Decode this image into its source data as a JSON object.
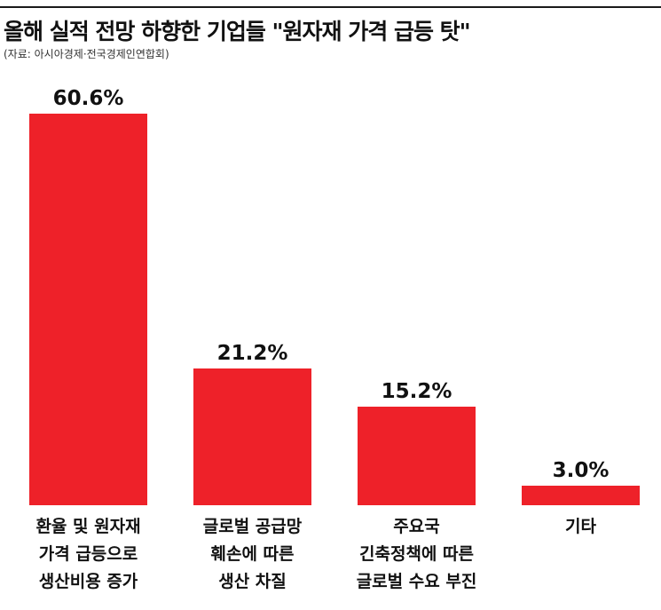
{
  "title": "올해 실적 전망 하향한 기업들 \"원자재 가격 급등 탓\"",
  "source": "(자료: 아시아경제·전국경제인연합회)",
  "colors": {
    "bar": "#ee2129",
    "rule": "#1a1a1a"
  },
  "chart_data": {
    "type": "bar",
    "title": "올해 실적 전망 하향한 기업들 \"원자재 가격 급등 탓\"",
    "xlabel": "",
    "ylabel": "",
    "ylim": [
      0,
      60.6
    ],
    "grid": false,
    "unit": "%",
    "categories": [
      [
        "환율 및 원자재",
        "가격 급등으로",
        "생산비용 증가"
      ],
      [
        "글로벌 공급망",
        "훼손에 따른",
        "생산 차질"
      ],
      [
        "주요국",
        "긴축정책에 따른",
        "글로벌 수요 부진"
      ],
      [
        "기타"
      ]
    ],
    "values": [
      60.6,
      21.2,
      15.2,
      3.0
    ],
    "value_labels": [
      "60.6%",
      "21.2%",
      "15.2%",
      "3.0%"
    ]
  }
}
